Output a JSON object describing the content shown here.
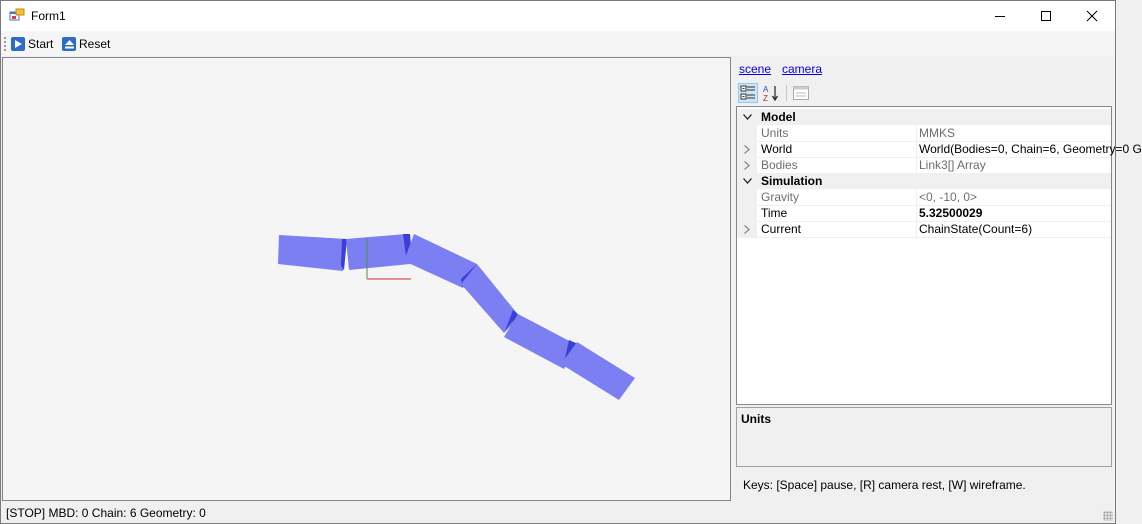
{
  "window": {
    "title": "Form1"
  },
  "toolbar": {
    "start_label": "Start",
    "reset_label": "Reset"
  },
  "right": {
    "links": [
      "scene",
      "camera"
    ],
    "grid": {
      "rows": [
        {
          "kind": "category",
          "expander": "collapse",
          "name": "Model"
        },
        {
          "kind": "prop",
          "name": "Units",
          "value": "MMKS",
          "readonly": true
        },
        {
          "kind": "prop",
          "expander": "expand",
          "name": "World",
          "value": "World(Bodies=0, Chain=6, Geometry=0 G",
          "readonly": false
        },
        {
          "kind": "prop",
          "expander": "expand",
          "name": "Bodies",
          "value": "Link3[] Array",
          "readonly": true
        },
        {
          "kind": "category",
          "expander": "collapse",
          "name": "Simulation"
        },
        {
          "kind": "prop",
          "name": "Gravity",
          "value": "<0, -10, 0>",
          "readonly": true
        },
        {
          "kind": "prop",
          "name": "Time",
          "value": "5.32500029",
          "readonly": false,
          "bold": true
        },
        {
          "kind": "prop",
          "expander": "expand",
          "name": "Current",
          "value": "ChainState(Count=6)",
          "readonly": false
        }
      ]
    },
    "description_title": "Units",
    "keys_text": "Keys: [Space] pause, [R] camera rest, [W] wireframe."
  },
  "status": {
    "text": "[STOP] MBD: 0 Chain: 6 Geometry: 0"
  },
  "colors": {
    "link_fill": "#7b7ff2",
    "link_edge": "#3a3fd8",
    "axis_x": "#e07070",
    "axis_y": "#3c9a3c",
    "accent": "#2e6bc4"
  }
}
